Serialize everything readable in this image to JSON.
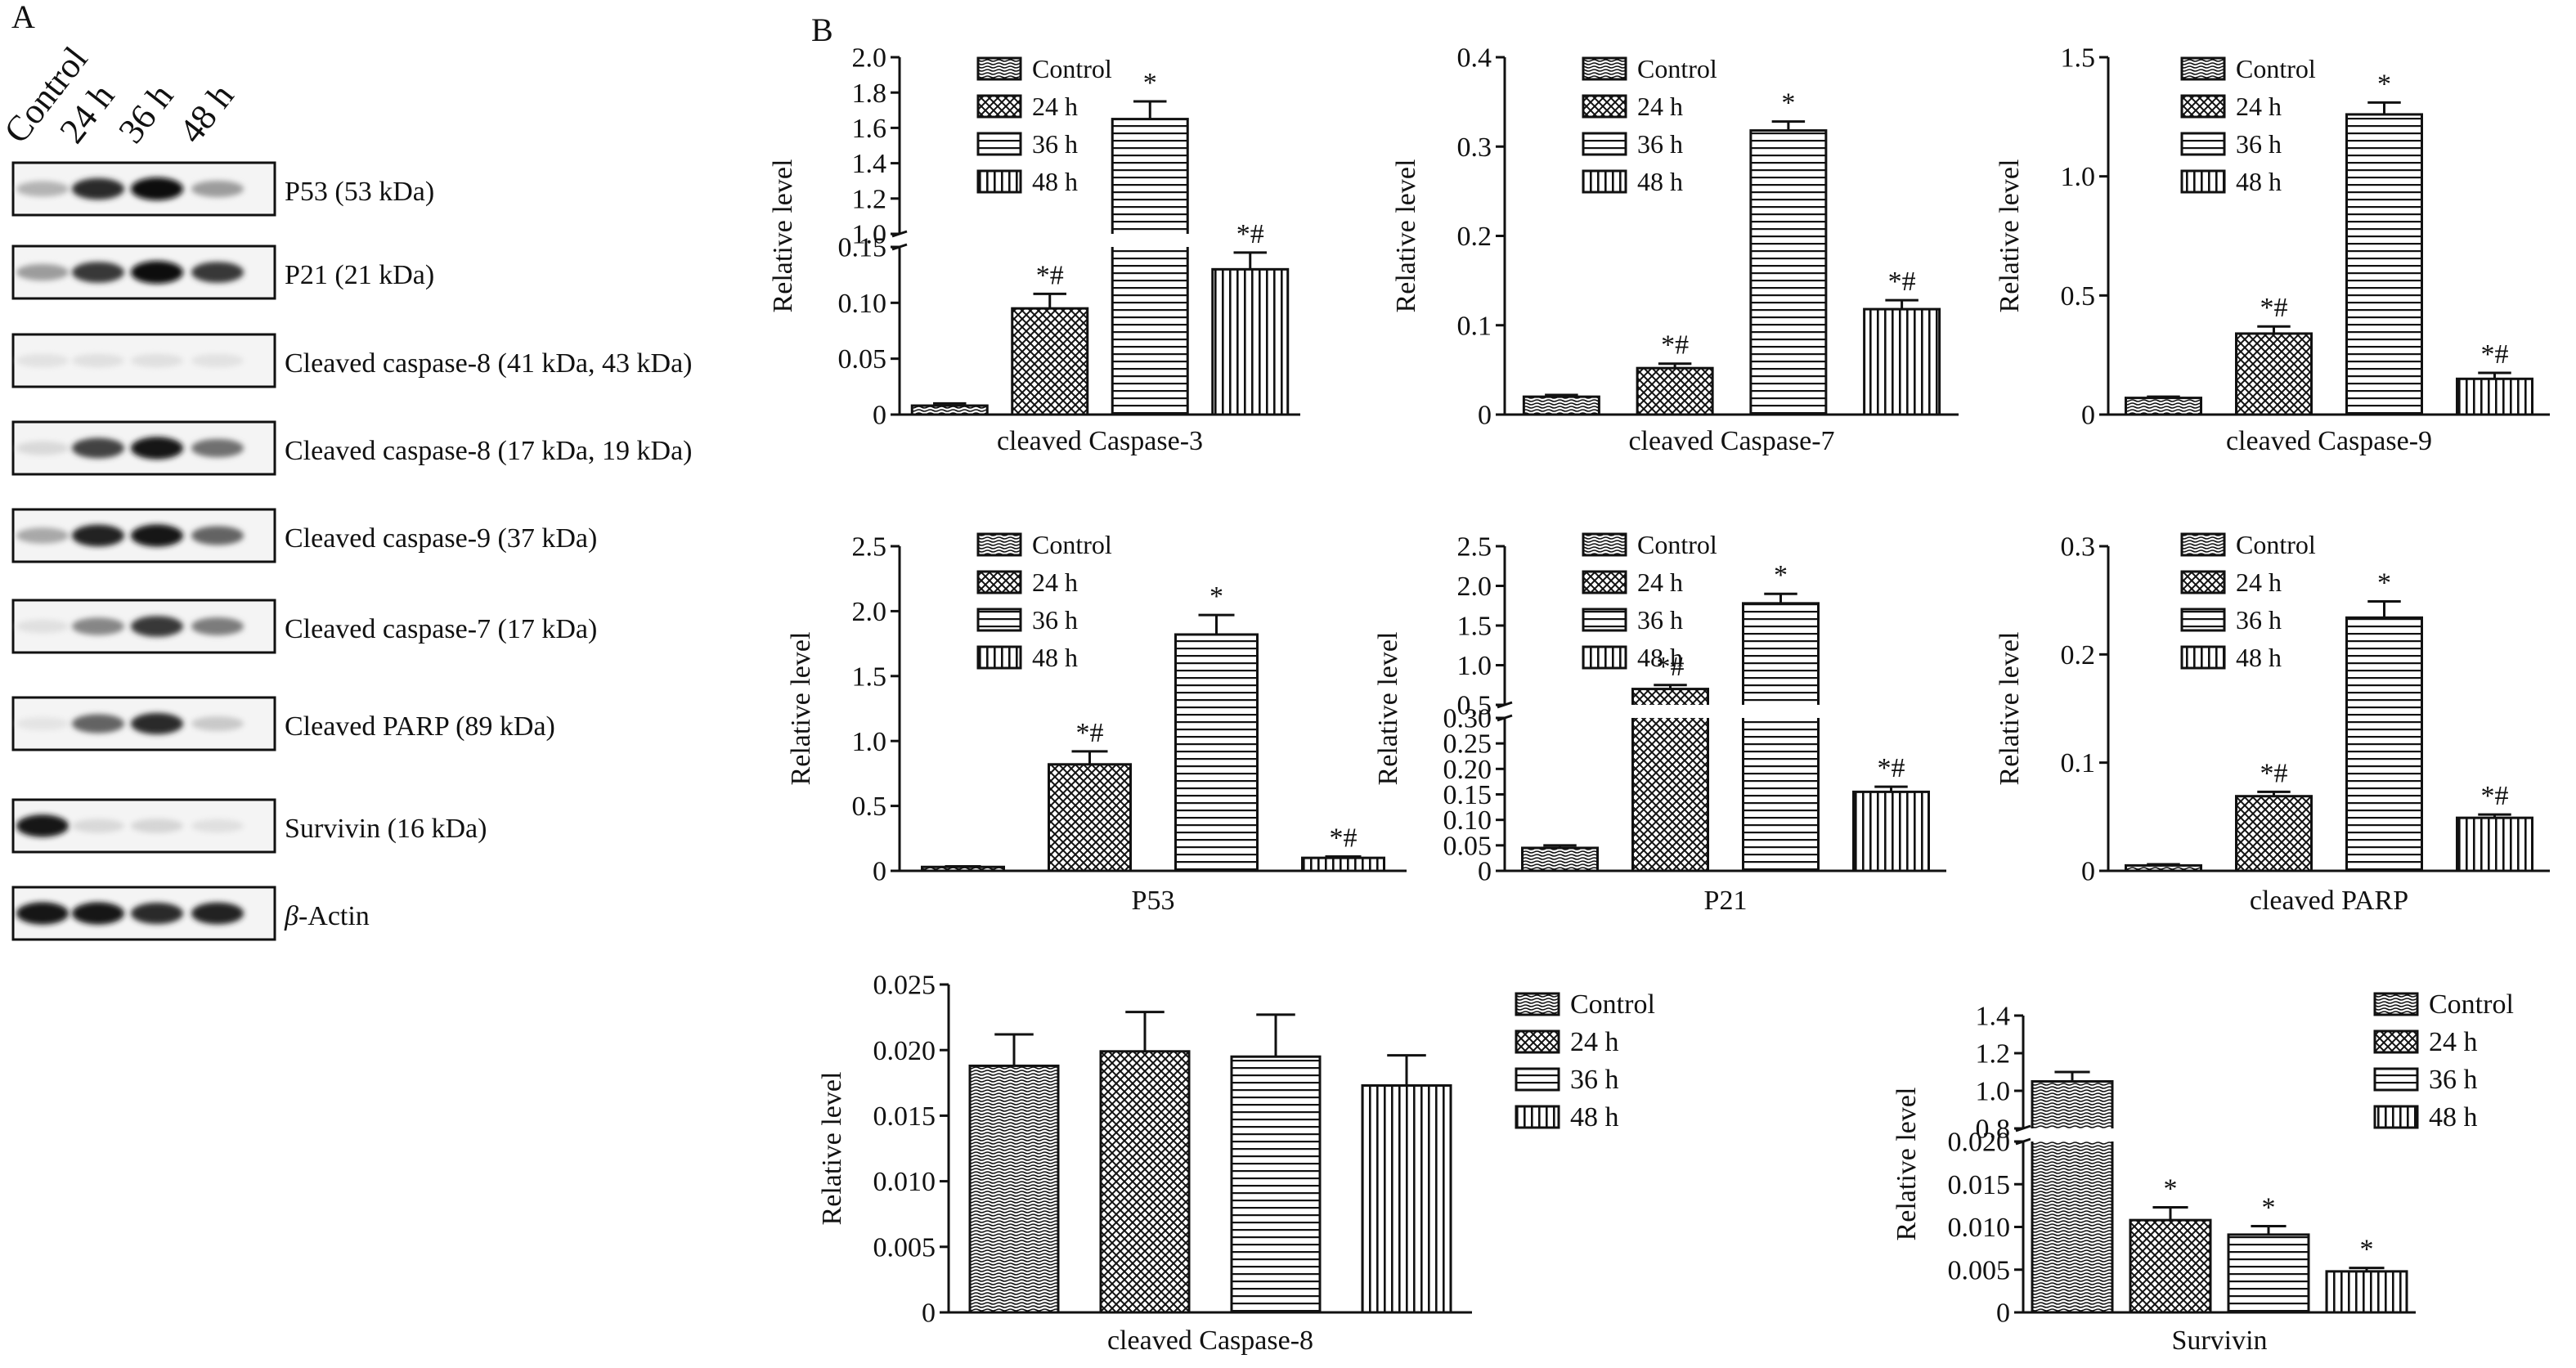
{
  "panel_labels": {
    "a": "A",
    "b": "B"
  },
  "blot": {
    "lanes": [
      "Control",
      "24 h",
      "36 h",
      "48 h"
    ],
    "rows": [
      {
        "label": "P53 (53 kDa)"
      },
      {
        "label": "P21 (21 kDa)"
      },
      {
        "label": "Cleaved caspase-8 (41 kDa, 43 kDa)"
      },
      {
        "label": "Cleaved caspase-8 (17 kDa, 19 kDa)"
      },
      {
        "label": "Cleaved caspase-9 (37 kDa)"
      },
      {
        "label": "Cleaved caspase-7 (17 kDa)"
      },
      {
        "label": "Cleaved PARP (89 kDa)"
      },
      {
        "label": "Survivin (16 kDa)"
      },
      {
        "label_greek": "β",
        "label": "-Actin"
      }
    ],
    "band_intensity": [
      [
        0.25,
        0.85,
        1.0,
        0.35
      ],
      [
        0.35,
        0.8,
        1.0,
        0.8
      ],
      [
        0.04,
        0.05,
        0.05,
        0.04
      ],
      [
        0.08,
        0.75,
        0.95,
        0.55
      ],
      [
        0.3,
        0.9,
        0.95,
        0.6
      ],
      [
        0.05,
        0.45,
        0.8,
        0.5
      ],
      [
        0.03,
        0.6,
        0.85,
        0.15
      ],
      [
        0.95,
        0.08,
        0.1,
        0.05
      ],
      [
        0.95,
        0.95,
        0.85,
        0.9
      ]
    ]
  },
  "legend_labels": [
    "Control",
    "24 h",
    "36 h",
    "48 h"
  ],
  "chart_data": [
    {
      "type": "bar",
      "xlabel": "cleaved Caspase-3",
      "ylabel": "Relative level",
      "categories": [
        "Control",
        "24 h",
        "36 h",
        "48 h"
      ],
      "values": [
        0.008,
        0.095,
        1.65,
        0.13
      ],
      "errors": [
        0.002,
        0.013,
        0.1,
        0.015
      ],
      "annotations": [
        "",
        "*#",
        "*",
        "*#"
      ],
      "axis_break": true,
      "lower_range": [
        0,
        0.15
      ],
      "lower_ticks": [
        "0",
        "0.05",
        "0.10",
        "0.15"
      ],
      "upper_range": [
        1.0,
        2.0
      ],
      "upper_ticks": [
        "1.0",
        "1.2",
        "1.4",
        "1.6",
        "1.8",
        "2.0"
      ]
    },
    {
      "type": "bar",
      "xlabel": "cleaved Caspase-7",
      "ylabel": "Relative level",
      "categories": [
        "Control",
        "24 h",
        "36 h",
        "48 h"
      ],
      "values": [
        0.02,
        0.052,
        0.318,
        0.118
      ],
      "errors": [
        0.002,
        0.005,
        0.01,
        0.01
      ],
      "annotations": [
        "",
        "*#",
        "*",
        "*#"
      ],
      "ylim": [
        0,
        0.4
      ],
      "ticks": [
        "0",
        "0.1",
        "0.2",
        "0.3",
        "0.4"
      ]
    },
    {
      "type": "bar",
      "xlabel": "cleaved Caspase-9",
      "ylabel": "Relative level",
      "categories": [
        "Control",
        "24 h",
        "36 h",
        "48 h"
      ],
      "values": [
        0.07,
        0.34,
        1.26,
        0.15
      ],
      "errors": [
        0.005,
        0.03,
        0.05,
        0.025
      ],
      "annotations": [
        "",
        "*#",
        "*",
        "*#"
      ],
      "ylim": [
        0,
        1.5
      ],
      "ticks": [
        "0",
        "0.5",
        "1.0",
        "1.5"
      ]
    },
    {
      "type": "bar",
      "xlabel": "P53",
      "ylabel": "Relative level",
      "categories": [
        "Control",
        "24 h",
        "36 h",
        "48 h"
      ],
      "values": [
        0.03,
        0.82,
        1.82,
        0.1
      ],
      "errors": [
        0.005,
        0.1,
        0.15,
        0.01
      ],
      "annotations": [
        "",
        "*#",
        "*",
        "*#"
      ],
      "ylim": [
        0,
        2.5
      ],
      "ticks": [
        "0",
        "0.5",
        "1.0",
        "1.5",
        "2.0",
        "2.5"
      ]
    },
    {
      "type": "bar",
      "xlabel": "P21",
      "ylabel": "Relative level",
      "categories": [
        "Control",
        "24 h",
        "36 h",
        "48 h"
      ],
      "values": [
        0.045,
        0.7,
        1.78,
        0.155
      ],
      "errors": [
        0.005,
        0.05,
        0.12,
        0.01
      ],
      "annotations": [
        "",
        "*#",
        "*",
        "*#"
      ],
      "axis_break": true,
      "lower_range": [
        0,
        0.3
      ],
      "lower_ticks": [
        "0",
        "0.05",
        "0.10",
        "0.15",
        "0.20",
        "0.25",
        "0.30"
      ],
      "upper_range": [
        0.5,
        2.5
      ],
      "upper_ticks": [
        "0.5",
        "1.0",
        "1.5",
        "2.0",
        "2.5"
      ]
    },
    {
      "type": "bar",
      "xlabel": "cleaved PARP",
      "ylabel": "Relative level",
      "categories": [
        "Control",
        "24 h",
        "36 h",
        "48 h"
      ],
      "values": [
        0.005,
        0.069,
        0.234,
        0.049
      ],
      "errors": [
        0.001,
        0.004,
        0.015,
        0.003
      ],
      "annotations": [
        "",
        "*#",
        "*",
        "*#"
      ],
      "ylim": [
        0,
        0.3
      ],
      "ticks": [
        "0",
        "0.1",
        "0.2",
        "0.3"
      ]
    },
    {
      "type": "bar",
      "xlabel": "cleaved Caspase-8",
      "ylabel": "Relative level",
      "categories": [
        "Control",
        "24 h",
        "36 h",
        "48 h"
      ],
      "values": [
        0.0188,
        0.0199,
        0.0195,
        0.0173
      ],
      "errors": [
        0.0024,
        0.003,
        0.0032,
        0.0023
      ],
      "annotations": [
        "",
        "",
        "",
        ""
      ],
      "ylim": [
        0,
        0.025
      ],
      "ticks": [
        "0",
        "0.005",
        "0.010",
        "0.015",
        "0.020",
        "0.025"
      ]
    },
    {
      "type": "bar",
      "xlabel": "Survivin",
      "ylabel": "Relative level",
      "categories": [
        "Control",
        "24 h",
        "36 h",
        "48 h"
      ],
      "values": [
        1.05,
        0.0108,
        0.0091,
        0.0048
      ],
      "errors": [
        0.05,
        0.0015,
        0.001,
        0.0004
      ],
      "annotations": [
        "",
        "*",
        "*",
        "*"
      ],
      "axis_break": true,
      "lower_range": [
        0,
        0.02
      ],
      "lower_ticks": [
        "0",
        "0.005",
        "0.010",
        "0.015",
        "0.020"
      ],
      "upper_range": [
        0.8,
        1.4
      ],
      "upper_ticks": [
        "0.8",
        "1.0",
        "1.2",
        "1.4"
      ]
    }
  ]
}
